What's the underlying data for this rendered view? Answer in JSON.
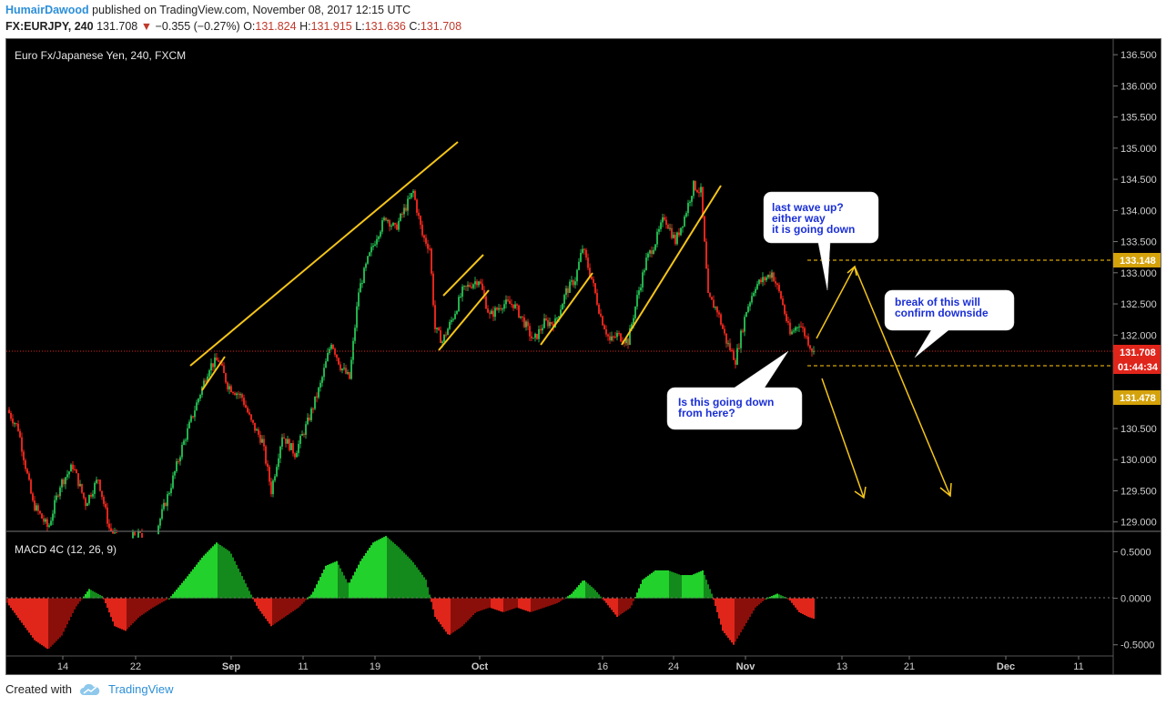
{
  "header": {
    "author": "HumairDawood",
    "published_text": "published on TradingView.com, November 08, 2017 12:15 UTC",
    "symbol": "FX:EURJPY, 240",
    "last": "131.708",
    "change_arrow": "▼",
    "change": "−0.355 (−0.27%)",
    "o_label": "O:",
    "o_value": "131.824",
    "h_label": "H:",
    "h_value": "131.915",
    "l_label": "L:",
    "l_value": "131.636",
    "c_label": "C:",
    "c_value": "131.708"
  },
  "chart_title": "Euro Fx/Japanese Yen, 240, FXCM",
  "macd_title": "MACD 4C (12, 26, 9)",
  "annotations": {
    "last_wave": [
      "last wave up?",
      "either way",
      "it is going down"
    ],
    "break": [
      "break of this will",
      "confirm downside"
    ],
    "going_down": [
      "Is this going down",
      "from here?"
    ]
  },
  "price_badges": {
    "upper_level": "133.148",
    "last_price": "131.708",
    "countdown": "01:44:34",
    "lower_level": "131.478"
  },
  "colors": {
    "background": "#000000",
    "up": "#22b14c",
    "down": "#e0251b",
    "annotation_line": "#f5c518",
    "level_line": "#d4a20a",
    "label_text": "#1a2fd6"
  },
  "footer": {
    "created_with": "Created with",
    "brand": "TradingView"
  },
  "chart_data": [
    {
      "type": "candlestick",
      "title": "Euro Fx/Japanese Yen, 240, FXCM",
      "y_ticks": [
        129.0,
        129.5,
        130.0,
        130.5,
        131.0,
        131.5,
        132.0,
        132.5,
        133.0,
        133.5,
        134.0,
        134.5,
        135.0,
        135.5,
        136.0,
        136.5
      ],
      "ylim": [
        128.85,
        136.75
      ],
      "x_ticks": [
        "14",
        "22",
        "Sep",
        "11",
        "19",
        "Oct",
        "16",
        "24",
        "Nov",
        "13",
        "21",
        "Dec",
        "11"
      ],
      "close_path": [
        [
          0,
          130.8
        ],
        [
          12,
          130.5
        ],
        [
          28,
          129.3
        ],
        [
          45,
          128.9
        ],
        [
          58,
          129.6
        ],
        [
          72,
          129.9
        ],
        [
          86,
          129.3
        ],
        [
          100,
          129.7
        ],
        [
          112,
          128.9
        ],
        [
          128,
          128.6
        ],
        [
          140,
          128.8
        ],
        [
          160,
          128.7
        ],
        [
          178,
          129.5
        ],
        [
          192,
          130.2
        ],
        [
          208,
          130.9
        ],
        [
          222,
          131.5
        ],
        [
          232,
          131.6
        ],
        [
          242,
          131.2
        ],
        [
          258,
          131.0
        ],
        [
          268,
          130.6
        ],
        [
          280,
          130.3
        ],
        [
          290,
          129.5
        ],
        [
          302,
          130.4
        ],
        [
          316,
          130.1
        ],
        [
          330,
          130.6
        ],
        [
          344,
          131.2
        ],
        [
          356,
          131.9
        ],
        [
          366,
          131.5
        ],
        [
          376,
          131.3
        ],
        [
          386,
          132.7
        ],
        [
          396,
          133.2
        ],
        [
          406,
          133.6
        ],
        [
          416,
          133.9
        ],
        [
          426,
          133.7
        ],
        [
          436,
          134.0
        ],
        [
          446,
          134.3
        ],
        [
          456,
          133.6
        ],
        [
          464,
          133.4
        ],
        [
          470,
          132.1
        ],
        [
          478,
          131.9
        ],
        [
          490,
          132.3
        ],
        [
          500,
          132.7
        ],
        [
          508,
          132.8
        ],
        [
          518,
          132.9
        ],
        [
          530,
          132.3
        ],
        [
          544,
          132.5
        ],
        [
          556,
          132.5
        ],
        [
          568,
          132.2
        ],
        [
          578,
          131.9
        ],
        [
          590,
          132.2
        ],
        [
          602,
          132.2
        ],
        [
          614,
          132.7
        ],
        [
          624,
          132.9
        ],
        [
          632,
          133.4
        ],
        [
          642,
          132.9
        ],
        [
          652,
          132.3
        ],
        [
          662,
          131.9
        ],
        [
          670,
          132.0
        ],
        [
          682,
          131.9
        ],
        [
          692,
          132.6
        ],
        [
          702,
          133.2
        ],
        [
          712,
          133.5
        ],
        [
          722,
          133.9
        ],
        [
          734,
          133.5
        ],
        [
          744,
          133.9
        ],
        [
          754,
          134.4
        ],
        [
          762,
          134.3
        ],
        [
          770,
          132.6
        ],
        [
          780,
          132.4
        ],
        [
          790,
          131.9
        ],
        [
          800,
          131.6
        ],
        [
          812,
          132.4
        ],
        [
          822,
          132.8
        ],
        [
          832,
          132.9
        ],
        [
          840,
          133.0
        ],
        [
          850,
          132.6
        ],
        [
          860,
          132.0
        ],
        [
          870,
          132.2
        ],
        [
          880,
          131.9
        ],
        [
          886,
          131.71
        ]
      ]
    },
    {
      "type": "histogram",
      "title": "MACD 4C (12, 26, 9)",
      "y_ticks": [
        -0.5,
        0.0,
        0.5
      ],
      "ylim": [
        -0.62,
        0.72
      ],
      "path": [
        [
          0,
          -0.05
        ],
        [
          15,
          -0.25
        ],
        [
          30,
          -0.45
        ],
        [
          45,
          -0.55
        ],
        [
          60,
          -0.4
        ],
        [
          75,
          -0.1
        ],
        [
          90,
          0.1
        ],
        [
          105,
          0.02
        ],
        [
          118,
          -0.3
        ],
        [
          130,
          -0.35
        ],
        [
          145,
          -0.2
        ],
        [
          160,
          -0.1
        ],
        [
          178,
          0.0
        ],
        [
          195,
          0.2
        ],
        [
          215,
          0.45
        ],
        [
          230,
          0.6
        ],
        [
          245,
          0.5
        ],
        [
          260,
          0.2
        ],
        [
          275,
          -0.1
        ],
        [
          290,
          -0.3
        ],
        [
          305,
          -0.2
        ],
        [
          320,
          -0.1
        ],
        [
          335,
          0.05
        ],
        [
          350,
          0.35
        ],
        [
          362,
          0.4
        ],
        [
          375,
          0.15
        ],
        [
          388,
          0.4
        ],
        [
          402,
          0.6
        ],
        [
          416,
          0.67
        ],
        [
          430,
          0.55
        ],
        [
          445,
          0.4
        ],
        [
          460,
          0.2
        ],
        [
          470,
          -0.2
        ],
        [
          485,
          -0.4
        ],
        [
          500,
          -0.3
        ],
        [
          515,
          -0.15
        ],
        [
          530,
          -0.1
        ],
        [
          545,
          -0.15
        ],
        [
          560,
          -0.1
        ],
        [
          575,
          -0.15
        ],
        [
          590,
          -0.1
        ],
        [
          605,
          -0.05
        ],
        [
          620,
          0.05
        ],
        [
          633,
          0.2
        ],
        [
          645,
          0.1
        ],
        [
          658,
          -0.05
        ],
        [
          670,
          -0.2
        ],
        [
          685,
          -0.1
        ],
        [
          698,
          0.2
        ],
        [
          712,
          0.3
        ],
        [
          726,
          0.3
        ],
        [
          740,
          0.25
        ],
        [
          752,
          0.25
        ],
        [
          764,
          0.3
        ],
        [
          774,
          0.05
        ],
        [
          786,
          -0.35
        ],
        [
          798,
          -0.5
        ],
        [
          810,
          -0.3
        ],
        [
          822,
          -0.1
        ],
        [
          834,
          0.0
        ],
        [
          846,
          0.05
        ],
        [
          858,
          0.0
        ],
        [
          870,
          -0.15
        ],
        [
          880,
          -0.2
        ],
        [
          886,
          -0.22
        ]
      ]
    }
  ]
}
